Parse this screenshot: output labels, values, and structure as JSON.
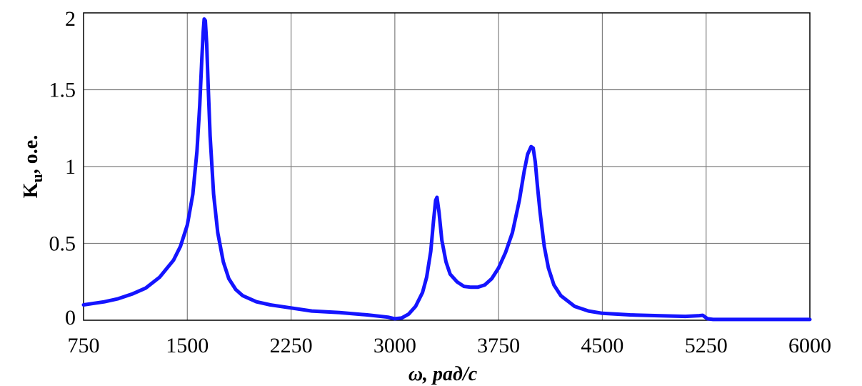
{
  "chart_data": {
    "type": "line",
    "xlabel": "ω, рад/с",
    "ylabel_main": "K",
    "ylabel_sub": "u",
    "ylabel_suffix": ", о.е.",
    "xlim": [
      750,
      6000
    ],
    "ylim": [
      0,
      2
    ],
    "x_ticks": [
      750,
      1500,
      2250,
      3000,
      3750,
      4500,
      5250,
      6000
    ],
    "y_ticks": [
      0,
      0.5,
      1,
      1.5,
      2
    ],
    "y_tick_labels": [
      "0",
      "0.5",
      "1",
      "1.5",
      "2"
    ],
    "grid": true,
    "line_color": "#1414ff",
    "series": [
      {
        "x": [
          750,
          900,
          1000,
          1100,
          1200,
          1300,
          1400,
          1450,
          1500,
          1540,
          1570,
          1590,
          1605,
          1615,
          1622,
          1630,
          1640,
          1650,
          1665,
          1690,
          1720,
          1760,
          1800,
          1850,
          1900,
          2000,
          2100,
          2250,
          2400,
          2600,
          2800,
          2950,
          3000,
          3050,
          3100,
          3150,
          3200,
          3230,
          3260,
          3280,
          3295,
          3305,
          3320,
          3340,
          3370,
          3400,
          3450,
          3500,
          3550,
          3600,
          3650,
          3700,
          3750,
          3800,
          3850,
          3900,
          3935,
          3960,
          3985,
          4000,
          4015,
          4030,
          4050,
          4080,
          4110,
          4150,
          4200,
          4300,
          4400,
          4500,
          4700,
          4900,
          5100,
          5200,
          5225,
          5260,
          5300,
          5500,
          5800,
          6000
        ],
        "y": [
          0.1,
          0.12,
          0.14,
          0.17,
          0.21,
          0.28,
          0.39,
          0.48,
          0.62,
          0.82,
          1.1,
          1.4,
          1.7,
          1.88,
          1.96,
          1.95,
          1.8,
          1.55,
          1.2,
          0.82,
          0.57,
          0.38,
          0.27,
          0.2,
          0.16,
          0.12,
          0.1,
          0.08,
          0.06,
          0.05,
          0.035,
          0.02,
          0.01,
          0.015,
          0.04,
          0.09,
          0.18,
          0.28,
          0.45,
          0.65,
          0.78,
          0.8,
          0.7,
          0.52,
          0.38,
          0.3,
          0.25,
          0.22,
          0.215,
          0.215,
          0.23,
          0.27,
          0.34,
          0.44,
          0.57,
          0.78,
          0.97,
          1.08,
          1.13,
          1.12,
          1.03,
          0.88,
          0.7,
          0.48,
          0.34,
          0.23,
          0.16,
          0.09,
          0.06,
          0.045,
          0.035,
          0.03,
          0.025,
          0.03,
          0.032,
          0.01,
          0.005,
          0.005,
          0.005,
          0.005
        ]
      }
    ]
  }
}
